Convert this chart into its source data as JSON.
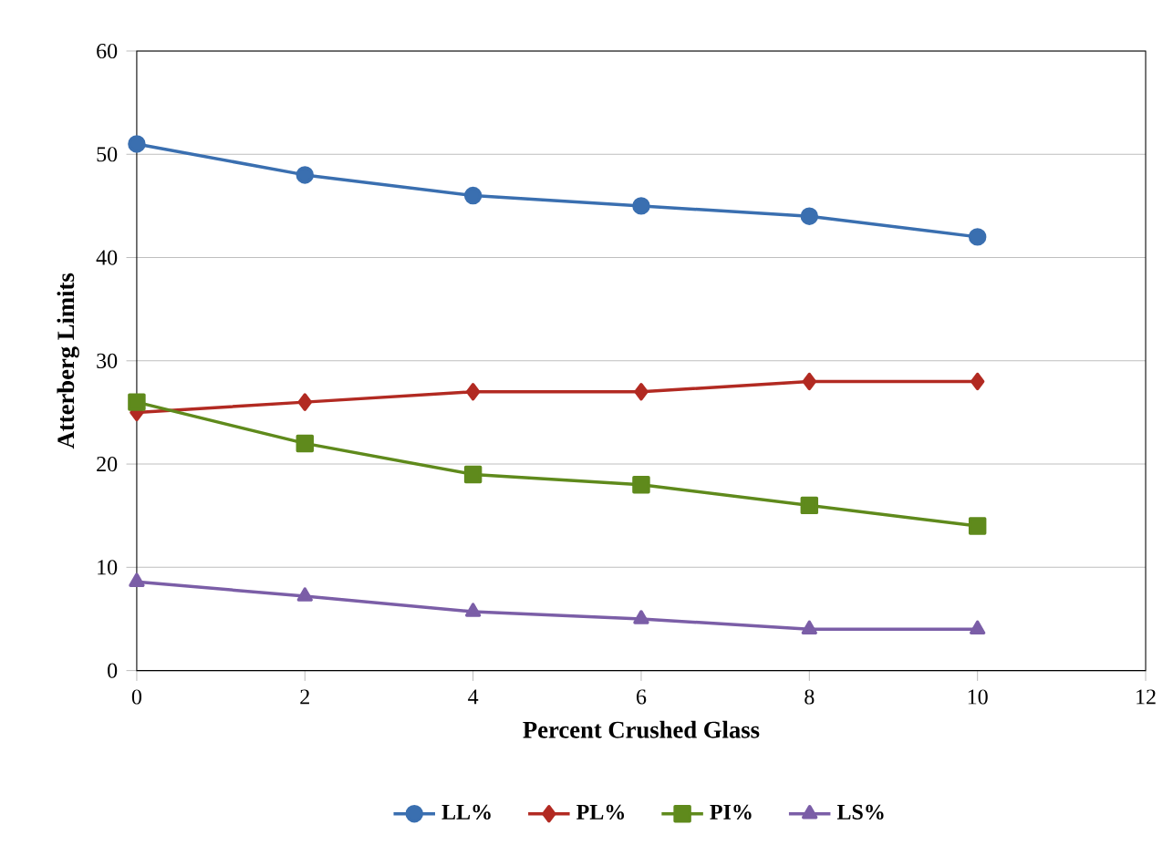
{
  "chart_data": {
    "type": "line",
    "xlabel": "Percent Crushed  Glass",
    "ylabel": "Atterberg  Limits",
    "x": [
      0,
      2,
      4,
      6,
      8,
      10
    ],
    "series": [
      {
        "name": "LL%",
        "color": "#3a6fb0",
        "marker": "circle",
        "values": [
          51,
          48,
          46,
          45,
          44,
          42
        ]
      },
      {
        "name": "PL%",
        "color": "#b22a22",
        "marker": "diamond",
        "values": [
          25,
          26,
          27,
          27,
          28,
          28
        ]
      },
      {
        "name": "PI%",
        "color": "#5f8a1c",
        "marker": "square",
        "values": [
          26,
          22,
          19,
          18,
          16,
          14
        ]
      },
      {
        "name": "LS%",
        "color": "#7b5ea7",
        "marker": "triangle",
        "values": [
          8.6,
          7.2,
          5.7,
          5,
          4,
          4
        ]
      }
    ],
    "xlim": [
      0,
      12
    ],
    "xticks": [
      0,
      2,
      4,
      6,
      8,
      10,
      12
    ],
    "ylim": [
      0,
      60
    ],
    "yticks": [
      0,
      10,
      20,
      30,
      40,
      50,
      60
    ],
    "grid": "y",
    "legend": "bottom",
    "line_style": "solid"
  }
}
